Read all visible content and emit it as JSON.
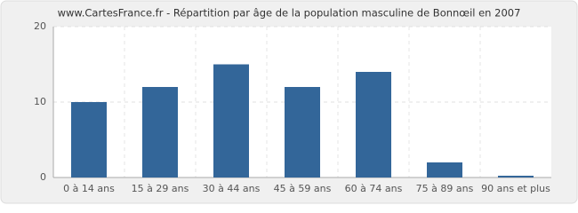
{
  "chart_data": {
    "type": "bar",
    "title": "www.CartesFrance.fr - Répartition par âge de la population masculine de Bonnœil en 2007",
    "categories": [
      "0 à 14 ans",
      "15 à 29 ans",
      "30 à 44 ans",
      "45 à 59 ans",
      "60 à 74 ans",
      "75 à 89 ans",
      "90 ans et plus"
    ],
    "values": [
      10,
      12,
      15,
      12,
      14,
      2,
      0
    ],
    "color": "#336699",
    "ylim": [
      0,
      20
    ],
    "yticks": [
      0,
      10,
      20
    ],
    "grid": true
  }
}
